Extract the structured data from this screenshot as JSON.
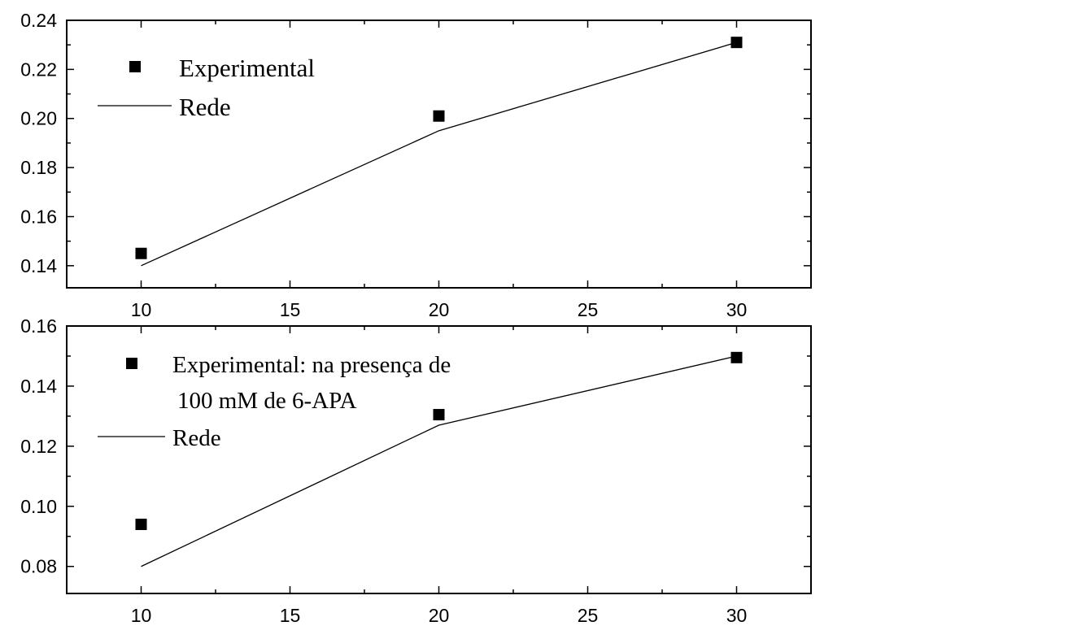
{
  "chart_data": [
    {
      "type": "line",
      "title": "",
      "xlabel": "",
      "ylabel": "",
      "xlim": [
        7.5,
        32.5
      ],
      "ylim": [
        0.131,
        0.24
      ],
      "x_ticks": [
        "10",
        "15",
        "20",
        "25",
        "30"
      ],
      "y_ticks": [
        "0.14",
        "0.16",
        "0.18",
        "0.20",
        "0.22",
        "0.24"
      ],
      "x_tick_values": [
        10,
        15,
        20,
        25,
        30
      ],
      "y_tick_values": [
        0.14,
        0.16,
        0.18,
        0.2,
        0.22,
        0.24
      ],
      "grid": false,
      "legend_position": "top-left",
      "series": [
        {
          "name": "Experimental",
          "kind": "scatter",
          "marker": "square",
          "color": "#000000",
          "x": [
            10,
            20,
            30
          ],
          "y": [
            0.145,
            0.201,
            0.231
          ]
        },
        {
          "name": "Rede",
          "kind": "line",
          "color": "#000000",
          "x": [
            10,
            20,
            30
          ],
          "y": [
            0.14,
            0.195,
            0.231
          ]
        }
      ],
      "legend": [
        "Experimental",
        "Rede"
      ]
    },
    {
      "type": "line",
      "title": "",
      "xlabel": "",
      "ylabel": "",
      "xlim": [
        7.5,
        32.5
      ],
      "ylim": [
        0.071,
        0.16
      ],
      "x_ticks": [
        "10",
        "15",
        "20",
        "25",
        "30"
      ],
      "y_ticks": [
        "0.08",
        "0.10",
        "0.12",
        "0.14",
        "0.16"
      ],
      "x_tick_values": [
        10,
        15,
        20,
        25,
        30
      ],
      "y_tick_values": [
        0.08,
        0.1,
        0.12,
        0.14,
        0.16
      ],
      "grid": false,
      "legend_position": "top-left",
      "series": [
        {
          "name": "Experimental: na presença de 100 mM de 6-APA",
          "kind": "scatter",
          "marker": "square",
          "color": "#000000",
          "x": [
            10,
            20,
            30
          ],
          "y": [
            0.094,
            0.1305,
            0.1495
          ]
        },
        {
          "name": "Rede",
          "kind": "line",
          "color": "#000000",
          "x": [
            10,
            20,
            30
          ],
          "y": [
            0.08,
            0.127,
            0.15
          ]
        }
      ],
      "legend": [
        "Experimental: na presença de",
        "100 mM de 6-APA",
        "Rede"
      ]
    }
  ]
}
